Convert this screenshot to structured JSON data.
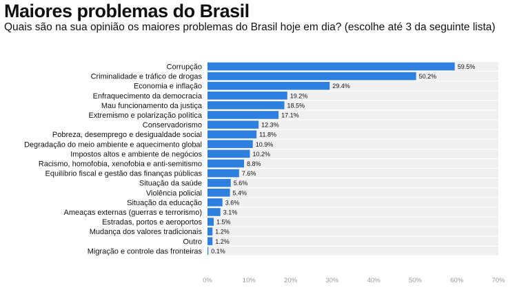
{
  "header": {
    "title": "Maiores problemas do Brasil",
    "subtitle": "Quais são na sua opinião os maiores problemas do Brasil hoje em dia? (escolhe até 3 da seguinte lista)"
  },
  "colors": {
    "bar": "#2d7fe0",
    "track": "#f0f0f0",
    "axis_text": "#9a9a9a",
    "label_text": "#111111"
  },
  "chart_data": {
    "type": "bar",
    "orientation": "horizontal",
    "title": "Maiores problemas do Brasil",
    "subtitle": "Quais são na sua opinião os maiores problemas do Brasil hoje em dia? (escolhe até 3 da seguinte lista)",
    "categories": [
      "Corrupção",
      "Criminalidade e tráfico de drogas",
      "Economia e inflação",
      "Enfraquecimento da democracia",
      "Mau funcionamento da justiça",
      "Extremismo e polarização política",
      "Conservadorismo",
      "Pobreza, desemprego e desigualdade social",
      "Degradação do meio ambiente e aquecimento global",
      "Impostos altos e ambiente de negócios",
      "Racismo, homofobia, xenofobia e anti-semitismo",
      "Equilíbrio fiscal e gestão das finanças públicas",
      "Situação da saúde",
      "Violência policial",
      "Situação da educação",
      "Ameaças externas (guerras e terrorismo)",
      "Estradas, portos e aeroportos",
      "Mudança dos valores tradicionais",
      "Outro",
      "Migração e controle das fronteiras"
    ],
    "values": [
      59.5,
      50.2,
      29.4,
      19.2,
      18.5,
      17.1,
      12.3,
      11.8,
      10.9,
      10.2,
      8.8,
      7.6,
      5.6,
      5.4,
      3.6,
      3.1,
      1.5,
      1.2,
      1.2,
      0.1
    ],
    "value_labels": [
      "59.5%",
      "50.2%",
      "29.4%",
      "19.2%",
      "18.5%",
      "17.1%",
      "12.3%",
      "11.8%",
      "10.9%",
      "10.2%",
      "8.8%",
      "7.6%",
      "5.6%",
      "5.4%",
      "3.6%",
      "3.1%",
      "1.5%",
      "1.2%",
      "1.2%",
      "0.1%"
    ],
    "xlim": [
      0,
      70
    ],
    "xticks": [
      0,
      10,
      20,
      30,
      40,
      50,
      60,
      70
    ],
    "xtick_labels": [
      "0%",
      "10%",
      "20%",
      "30%",
      "40%",
      "50%",
      "60%",
      "70%"
    ],
    "grid": false,
    "legend": "none"
  }
}
